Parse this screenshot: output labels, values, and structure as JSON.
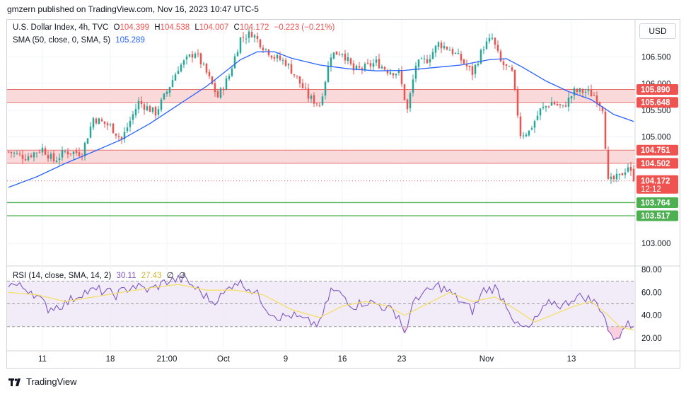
{
  "header": {
    "published_by": "gmzern published on TradingView.com, Nov 16, 2023 10:47 UTC-5"
  },
  "price_legend": {
    "symbol": "U.S. Dollar Index, 4h, TVC",
    "open_label": "O",
    "open": "104.399",
    "high_label": "H",
    "high": "104.538",
    "low_label": "L",
    "low": "104.007",
    "close_label": "C",
    "close": "104.172",
    "change": "−0.223 (−0.21%)"
  },
  "sma_legend": {
    "label": "SMA (50, close, 0, SMA, 5)",
    "value": "105.289"
  },
  "rsi_legend": {
    "label": "RSI (14, close, SMA, 14, 2)",
    "rsi_value": "30.11",
    "rsi_ma_value": "27.43",
    "extra1": "∅",
    "extra2": "∅"
  },
  "currency_button": "USD",
  "branding": "TradingView",
  "colors": {
    "up": "#26a69a",
    "down": "#ef5350",
    "sma": "#2962ff",
    "rsi": "#7e57c2",
    "rsi_ma": "#f5de6b",
    "resistance_fill": "#f9d9d9",
    "resistance_line": "#e57373",
    "support_line": "#4caf50"
  },
  "chart_data": {
    "type": "candlestick",
    "title": "U.S. Dollar Index, 4h, TVC",
    "price_axis": {
      "ylim": [
        102.6,
        107.2
      ],
      "ticks": [
        103.0,
        105.0,
        105.5,
        106.0,
        106.5
      ],
      "tick_labels": [
        "103.000",
        "105.000",
        "105.500",
        "106.000",
        "106.500"
      ]
    },
    "x_axis": {
      "labels": [
        "11",
        "18",
        "21:00",
        "Oct",
        "9",
        "16",
        "23",
        "Nov",
        "13"
      ],
      "label_positions_bar_index": [
        12,
        36,
        56,
        76,
        98,
        118,
        139,
        169,
        199
      ]
    },
    "price_labels": [
      {
        "value": 105.89,
        "text": "105.890",
        "color": "#ef5350"
      },
      {
        "value": 105.648,
        "text": "105.648",
        "color": "#ef5350"
      },
      {
        "value": 104.751,
        "text": "104.751",
        "color": "#ef5350"
      },
      {
        "value": 104.502,
        "text": "104.502",
        "color": "#ef5350"
      },
      {
        "value": 104.172,
        "text": "104.172",
        "sub": "12:12",
        "color": "#ef5350"
      },
      {
        "value": 103.764,
        "text": "103.764",
        "color": "#4caf50"
      },
      {
        "value": 103.517,
        "text": "103.517",
        "color": "#4caf50"
      }
    ],
    "zones": [
      {
        "name": "resistance-upper",
        "low": 105.648,
        "high": 105.89
      },
      {
        "name": "resistance-lower",
        "low": 104.502,
        "high": 104.751
      },
      {
        "name": "support",
        "low": 103.517,
        "high": 103.764
      }
    ],
    "current_price": 104.172,
    "close_path": [
      [
        0,
        104.72
      ],
      [
        6,
        104.62
      ],
      [
        12,
        104.78
      ],
      [
        16,
        104.55
      ],
      [
        20,
        104.72
      ],
      [
        26,
        104.7
      ],
      [
        30,
        105.35
      ],
      [
        36,
        105.2
      ],
      [
        40,
        104.95
      ],
      [
        46,
        105.65
      ],
      [
        52,
        105.45
      ],
      [
        56,
        105.85
      ],
      [
        60,
        106.3
      ],
      [
        66,
        106.6
      ],
      [
        70,
        106.2
      ],
      [
        74,
        105.75
      ],
      [
        78,
        106.15
      ],
      [
        82,
        106.85
      ],
      [
        86,
        106.95
      ],
      [
        90,
        106.7
      ],
      [
        94,
        106.5
      ],
      [
        98,
        106.4
      ],
      [
        102,
        106.1
      ],
      [
        106,
        105.75
      ],
      [
        110,
        105.6
      ],
      [
        114,
        106.55
      ],
      [
        118,
        106.6
      ],
      [
        122,
        106.25
      ],
      [
        126,
        106.3
      ],
      [
        130,
        106.4
      ],
      [
        134,
        106.25
      ],
      [
        138,
        106.2
      ],
      [
        141,
        105.5
      ],
      [
        144,
        106.35
      ],
      [
        148,
        106.45
      ],
      [
        152,
        106.75
      ],
      [
        156,
        106.65
      ],
      [
        160,
        106.45
      ],
      [
        164,
        106.2
      ],
      [
        168,
        106.7
      ],
      [
        171,
        106.85
      ],
      [
        174,
        106.4
      ],
      [
        178,
        106.2
      ],
      [
        181,
        105.05
      ],
      [
        184,
        105.1
      ],
      [
        188,
        105.5
      ],
      [
        192,
        105.65
      ],
      [
        196,
        105.55
      ],
      [
        200,
        105.85
      ],
      [
        204,
        105.85
      ],
      [
        207,
        105.78
      ],
      [
        210,
        105.55
      ],
      [
        212,
        104.15
      ],
      [
        216,
        104.25
      ],
      [
        219,
        104.45
      ],
      [
        221,
        104.17
      ]
    ],
    "sma_path": [
      [
        0,
        104.05
      ],
      [
        10,
        104.25
      ],
      [
        20,
        104.5
      ],
      [
        30,
        104.72
      ],
      [
        40,
        104.95
      ],
      [
        50,
        105.25
      ],
      [
        60,
        105.6
      ],
      [
        70,
        105.95
      ],
      [
        76,
        106.2
      ],
      [
        82,
        106.45
      ],
      [
        88,
        106.6
      ],
      [
        94,
        106.6
      ],
      [
        100,
        106.48
      ],
      [
        110,
        106.35
      ],
      [
        120,
        106.28
      ],
      [
        130,
        106.24
      ],
      [
        140,
        106.25
      ],
      [
        150,
        106.3
      ],
      [
        160,
        106.35
      ],
      [
        170,
        106.45
      ],
      [
        176,
        106.47
      ],
      [
        182,
        106.3
      ],
      [
        190,
        106.05
      ],
      [
        198,
        105.85
      ],
      [
        206,
        105.7
      ],
      [
        214,
        105.42
      ],
      [
        221,
        105.29
      ]
    ],
    "rsi": {
      "ylim": [
        10,
        82
      ],
      "ticks": [
        20,
        40,
        60,
        80
      ],
      "tick_labels": [
        "20.00",
        "40.00",
        "60.00",
        "80.00"
      ],
      "band": [
        30,
        70
      ],
      "midline": 50,
      "rsi_path": [
        [
          0,
          68
        ],
        [
          8,
          62
        ],
        [
          14,
          46
        ],
        [
          20,
          50
        ],
        [
          26,
          60
        ],
        [
          32,
          62
        ],
        [
          38,
          58
        ],
        [
          44,
          66
        ],
        [
          50,
          62
        ],
        [
          56,
          70
        ],
        [
          62,
          72
        ],
        [
          68,
          60
        ],
        [
          72,
          52
        ],
        [
          76,
          58
        ],
        [
          80,
          70
        ],
        [
          84,
          66
        ],
        [
          88,
          58
        ],
        [
          92,
          44
        ],
        [
          96,
          38
        ],
        [
          100,
          40
        ],
        [
          106,
          34
        ],
        [
          110,
          32
        ],
        [
          114,
          62
        ],
        [
          118,
          58
        ],
        [
          122,
          48
        ],
        [
          126,
          52
        ],
        [
          130,
          50
        ],
        [
          134,
          46
        ],
        [
          138,
          40
        ],
        [
          140,
          24
        ],
        [
          144,
          56
        ],
        [
          148,
          60
        ],
        [
          152,
          66
        ],
        [
          156,
          60
        ],
        [
          160,
          52
        ],
        [
          164,
          44
        ],
        [
          168,
          62
        ],
        [
          172,
          64
        ],
        [
          176,
          50
        ],
        [
          180,
          30
        ],
        [
          184,
          28
        ],
        [
          188,
          42
        ],
        [
          192,
          52
        ],
        [
          196,
          48
        ],
        [
          200,
          56
        ],
        [
          204,
          56
        ],
        [
          208,
          50
        ],
        [
          210,
          44
        ],
        [
          213,
          20
        ],
        [
          217,
          24
        ],
        [
          219,
          36
        ],
        [
          221,
          30
        ]
      ],
      "ma_path": [
        [
          0,
          60
        ],
        [
          10,
          58
        ],
        [
          20,
          52
        ],
        [
          30,
          56
        ],
        [
          40,
          60
        ],
        [
          50,
          64
        ],
        [
          60,
          67
        ],
        [
          70,
          62
        ],
        [
          80,
          62
        ],
        [
          90,
          58
        ],
        [
          100,
          45
        ],
        [
          110,
          38
        ],
        [
          118,
          48
        ],
        [
          126,
          52
        ],
        [
          134,
          48
        ],
        [
          140,
          40
        ],
        [
          148,
          50
        ],
        [
          156,
          60
        ],
        [
          164,
          52
        ],
        [
          172,
          56
        ],
        [
          180,
          44
        ],
        [
          186,
          34
        ],
        [
          192,
          40
        ],
        [
          200,
          48
        ],
        [
          206,
          52
        ],
        [
          212,
          40
        ],
        [
          216,
          30
        ],
        [
          221,
          27
        ]
      ]
    }
  }
}
